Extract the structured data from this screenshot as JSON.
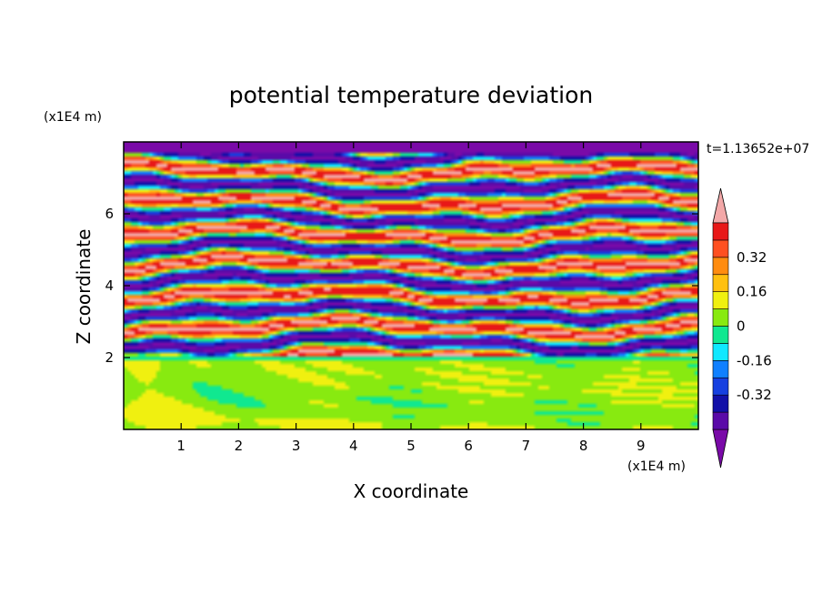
{
  "chart_data": {
    "type": "heatmap",
    "title": "potential temperature deviation",
    "xlabel": "X coordinate",
    "ylabel": "Z coordinate",
    "x_unit": "(x1E4 m)",
    "y_unit": "(x1E4 m)",
    "time_label": "t=1.13652e+07",
    "xlim": [
      0,
      10
    ],
    "ylim": [
      0,
      8
    ],
    "x_ticks": [
      "1",
      "2",
      "3",
      "4",
      "5",
      "6",
      "7",
      "8",
      "9"
    ],
    "y_ticks": [
      "2",
      "4",
      "6"
    ],
    "colorbar": {
      "levels": [
        -0.48,
        -0.4,
        -0.32,
        -0.24,
        -0.16,
        -0.08,
        0,
        0.08,
        0.16,
        0.24,
        0.32,
        0.4,
        0.48
      ],
      "tick_labels": [
        "0.32",
        "0.16",
        "0",
        "-0.16",
        "-0.32"
      ],
      "tick_values": [
        0.32,
        0.16,
        0,
        -0.16,
        -0.32
      ],
      "colors": [
        "#7a0aa8",
        "#5a0aa8",
        "#1210a8",
        "#1640e0",
        "#1080ff",
        "#10e8ff",
        "#10e890",
        "#88ea10",
        "#f0f010",
        "#ffc010",
        "#ff8c10",
        "#ff5020",
        "#e81818",
        "#f3a8a8"
      ],
      "extend": "both"
    },
    "regions": {
      "lower_layer": {
        "z_range": [
          0,
          2
        ],
        "dominant_values": [
          0,
          0.08
        ]
      },
      "upper_layer": {
        "z_range": [
          2,
          8
        ],
        "dominant_values": [
          -0.48,
          0.48
        ],
        "pattern": "alternating horizontal filaments"
      }
    }
  }
}
